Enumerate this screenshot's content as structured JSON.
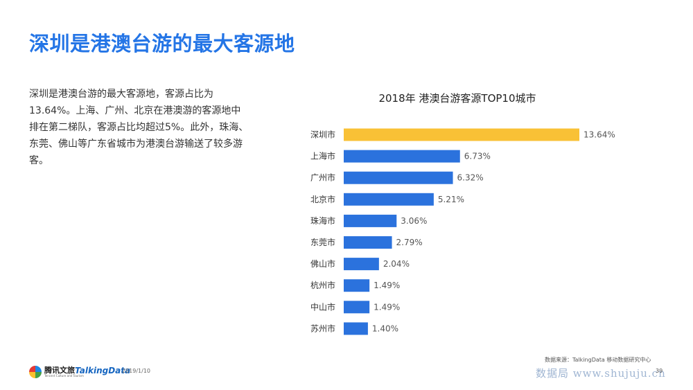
{
  "slide": {
    "title": "深圳是港澳台游的最大客源地",
    "description": "深圳是港澳台游的最大客源地，客源占比为13.64%。上海、广州、北京在港澳游的客源地中排在第二梯队，客源占比均超过5%。此外，珠海、东莞、佛山等广东省城市为港澳台游输送了较多游客。"
  },
  "chart_data": {
    "type": "bar",
    "orientation": "horizontal",
    "title": "2018年 港澳台游客源TOP10城市",
    "categories": [
      "深圳市",
      "上海市",
      "广州市",
      "北京市",
      "珠海市",
      "东莞市",
      "佛山市",
      "杭州市",
      "中山市",
      "苏州市"
    ],
    "values": [
      13.64,
      6.73,
      6.32,
      5.21,
      3.06,
      2.79,
      2.04,
      1.49,
      1.49,
      1.4
    ],
    "value_labels": [
      "13.64%",
      "6.73%",
      "6.32%",
      "5.21%",
      "3.06%",
      "2.79%",
      "2.04%",
      "1.49%",
      "1.49%",
      "1.40%"
    ],
    "unit": "%",
    "xlim": [
      0,
      14
    ],
    "colors": {
      "highlight": "#f9c136",
      "default": "#2b72dd"
    },
    "highlight_index": 0,
    "grid": false,
    "legend": "none"
  },
  "footer": {
    "logo1_text": "腾讯文旅",
    "logo1_sub": "Tencent Culture and Tourism",
    "logo2_text": "TalkingData",
    "date": "2019/1/10",
    "source": "数据来源：TalkingData 移动数据研究中心",
    "page_number": "39",
    "watermark": "数据局 www.shujuju.cn"
  }
}
